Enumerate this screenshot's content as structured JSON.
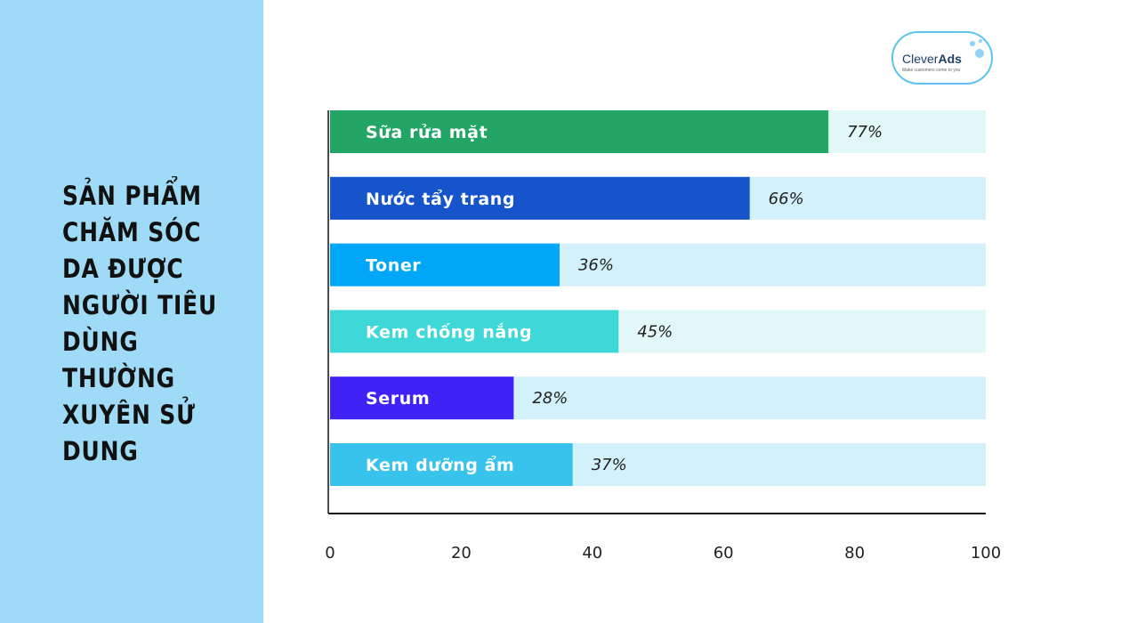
{
  "title_lines": [
    "SẢN PHẨM",
    "CHĂM SÓC",
    "DA ĐƯỢC",
    "NGƯỜI TIÊU",
    "DÙNG",
    "THƯỜNG",
    "XUYÊN SỬ",
    "DUNG"
  ],
  "logo": {
    "name_light": "Clever",
    "name_bold": "Ads",
    "tagline": "Make customers come to you"
  },
  "colors": {
    "panel": "#9fdbf6",
    "logo_border": "#5cc4ee"
  },
  "chart_data": {
    "type": "bar",
    "orientation": "horizontal",
    "categories": [
      "Sữa rửa mặt",
      "Nước tẩy trang",
      "Toner",
      "Kem chống nắng",
      "Serum",
      "Kem dưỡng ẩm"
    ],
    "values": [
      77,
      66,
      36,
      45,
      28,
      37
    ],
    "value_labels": [
      "77%",
      "66%",
      "36%",
      "45%",
      "28%",
      "37%"
    ],
    "bar_extent": [
      76,
      64,
      35,
      44,
      28,
      37
    ],
    "bar_colors": [
      "#22a565",
      "#1654cc",
      "#00a6f7",
      "#3ed8d8",
      "#3f23f6",
      "#38c3ed"
    ],
    "track_colors": [
      "#e2f8f6",
      "#d2f1fa",
      "#d2f1fa",
      "#e2f8f6",
      "#d2f1fa",
      "#d2f1fa"
    ],
    "xlim": [
      0,
      100
    ],
    "xticks": [
      0,
      20,
      40,
      60,
      80,
      100
    ],
    "grid": false
  }
}
